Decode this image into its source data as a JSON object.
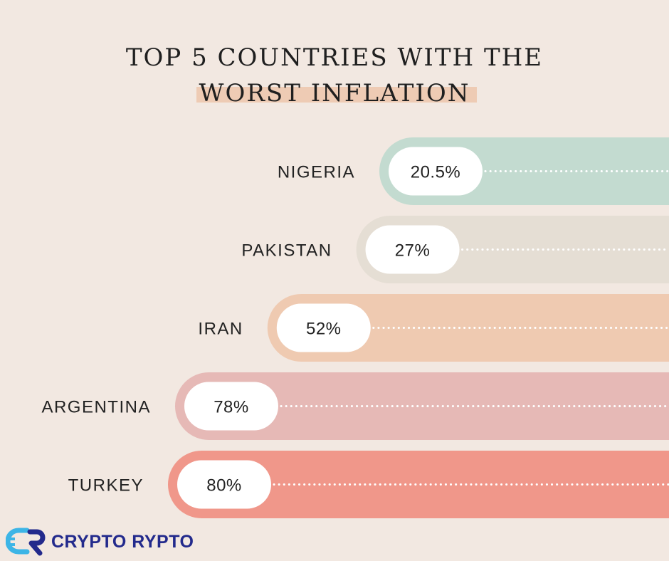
{
  "title": {
    "line1": "TOP 5 COUNTRIES WITH THE",
    "line2": "WORST INFLATION"
  },
  "chart_data": {
    "type": "bar",
    "orientation": "horizontal",
    "title": "TOP 5 COUNTRIES WITH THE WORST INFLATION",
    "xlabel": "",
    "ylabel": "",
    "categories": [
      "NIGERIA",
      "PAKISTAN",
      "IRAN",
      "ARGENTINA",
      "TURKEY"
    ],
    "values": [
      20.5,
      27,
      52,
      78,
      80
    ],
    "value_labels": [
      "20.5%",
      "27%",
      "52%",
      "78%",
      "80%"
    ],
    "colors": [
      "#C3DBD0",
      "#E5DED4",
      "#EFCAB1",
      "#E6B9B6",
      "#F0978A"
    ],
    "grid": false,
    "legend": "none"
  },
  "logo": {
    "text": "CRYPTO RYPTO",
    "icon": "cr-logo-icon",
    "brand_color": "#232A8C",
    "accent_color": "#3DB5E6"
  }
}
